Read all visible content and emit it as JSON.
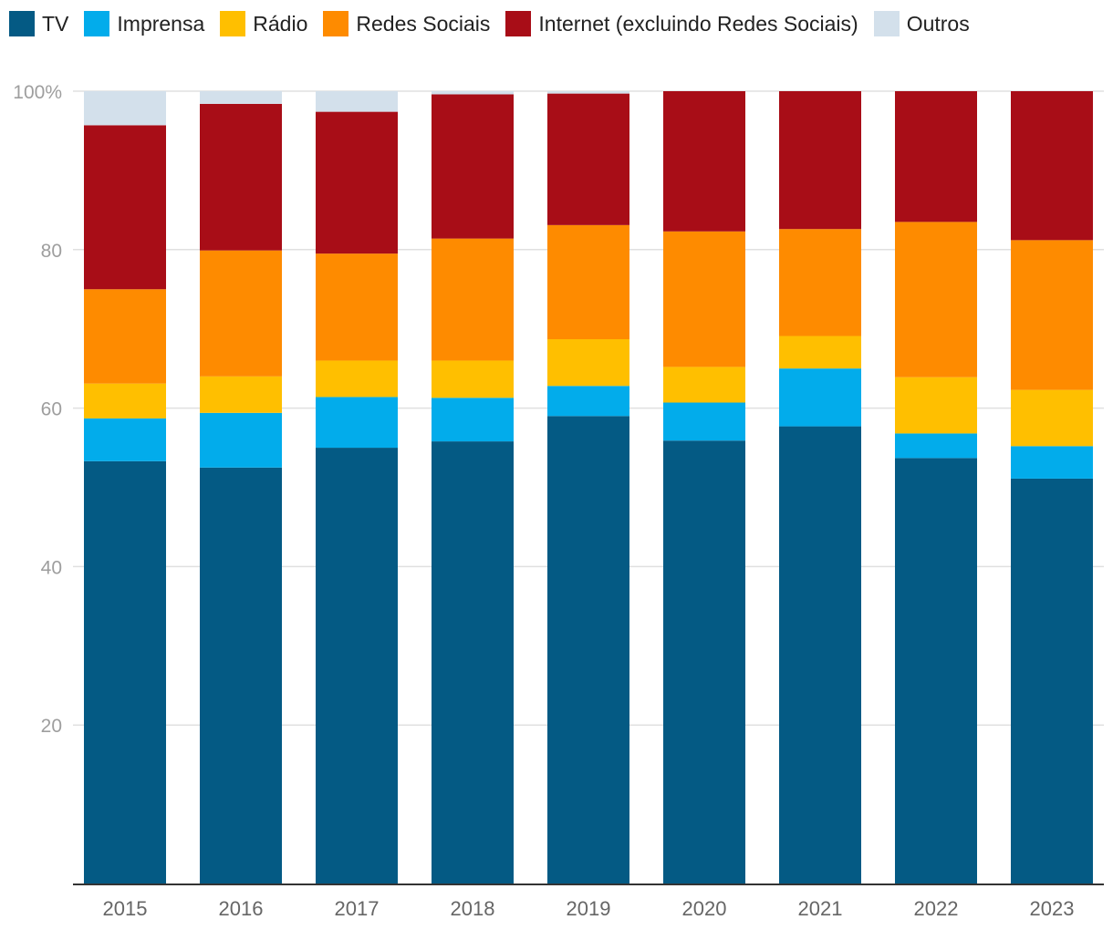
{
  "chart_data": {
    "type": "bar",
    "stacked": true,
    "title": "",
    "xlabel": "",
    "ylabel": "",
    "ylim": [
      0,
      100
    ],
    "y_ticks": [
      20,
      40,
      60,
      80,
      100
    ],
    "y_tick_labels": [
      "20",
      "40",
      "60",
      "80",
      "100%"
    ],
    "grid": true,
    "legend_position": "top-left",
    "categories": [
      "2015",
      "2016",
      "2017",
      "2018",
      "2019",
      "2020",
      "2021",
      "2022",
      "2023"
    ],
    "series": [
      {
        "name": "TV",
        "color": "#045a84",
        "values": [
          53.3,
          52.5,
          55.0,
          55.8,
          59.0,
          55.9,
          57.7,
          53.7,
          51.1
        ]
      },
      {
        "name": "Imprensa",
        "color": "#02aceb",
        "values": [
          5.4,
          6.9,
          6.4,
          5.5,
          3.8,
          4.8,
          7.3,
          3.1,
          4.1
        ]
      },
      {
        "name": "Rádio",
        "color": "#ffbf00",
        "values": [
          4.4,
          4.6,
          4.6,
          4.7,
          5.9,
          4.5,
          4.1,
          7.1,
          7.1
        ]
      },
      {
        "name": "Redes Sociais",
        "color": "#fe8b00",
        "values": [
          11.9,
          15.9,
          13.5,
          15.4,
          14.4,
          17.1,
          13.5,
          19.6,
          18.9
        ]
      },
      {
        "name": "Internet (excluindo Redes Sociais)",
        "color": "#a80d17",
        "values": [
          20.7,
          18.5,
          17.9,
          18.2,
          16.6,
          17.7,
          17.4,
          16.5,
          18.8
        ]
      },
      {
        "name": "Outros",
        "color": "#d3e0eb",
        "values": [
          4.3,
          1.6,
          2.6,
          0.4,
          0.3,
          0.0,
          0.0,
          0.0,
          0.0
        ]
      }
    ]
  },
  "colors": {
    "gridline": "#e0e0e0",
    "axis": "#333333"
  }
}
